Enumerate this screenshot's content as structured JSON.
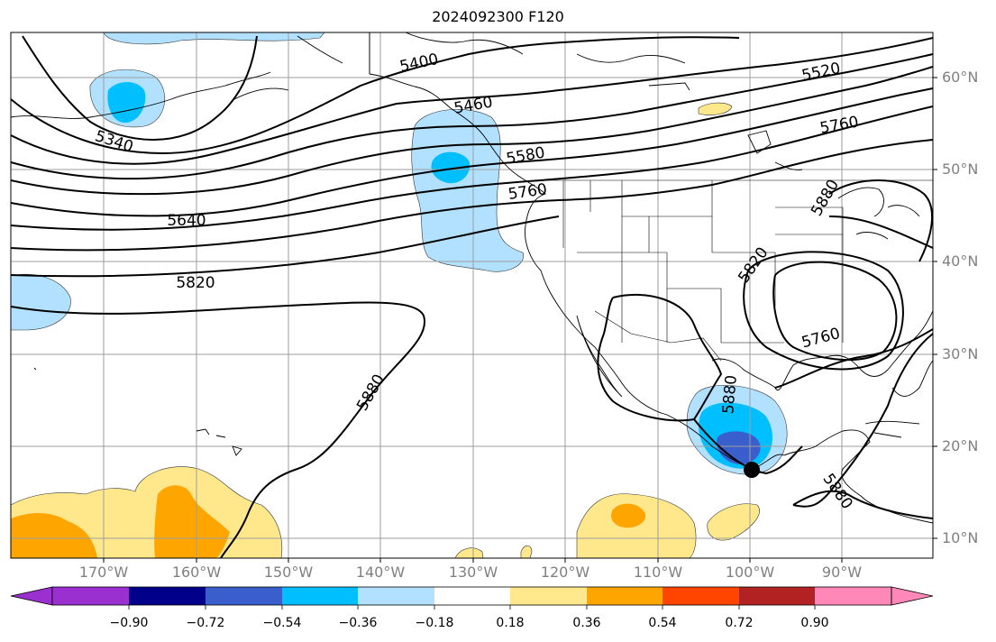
{
  "title": "2024092300 F120",
  "lat_labels": [
    "60°N",
    "50°N",
    "40°N",
    "30°N",
    "20°N",
    "10°N"
  ],
  "lon_labels": [
    "170°W",
    "160°W",
    "150°W",
    "140°W",
    "130°W",
    "120°W",
    "110°W",
    "100°W",
    "90°W"
  ],
  "contour_labels": [
    "5400",
    "5460",
    "5520",
    "5580",
    "5760",
    "5640",
    "5820",
    "5760",
    "5880",
    "5340",
    "5820",
    "5760",
    "5880",
    "5880",
    "5880"
  ],
  "colorbar": {
    "ticks": [
      "−0.90",
      "−0.72",
      "−0.54",
      "−0.36",
      "−0.18",
      "0.18",
      "0.36",
      "0.54",
      "0.72",
      "0.90"
    ],
    "colors": [
      "#9a30d0",
      "#00008b",
      "#3a5fcd",
      "#00bfff",
      "#b2e0ff",
      "#ffffff",
      "#ffe88c",
      "#ffa500",
      "#ff4500",
      "#b22222",
      "#ff88b8"
    ]
  },
  "marker": {
    "name": "storm-position",
    "color": "#000000"
  }
}
